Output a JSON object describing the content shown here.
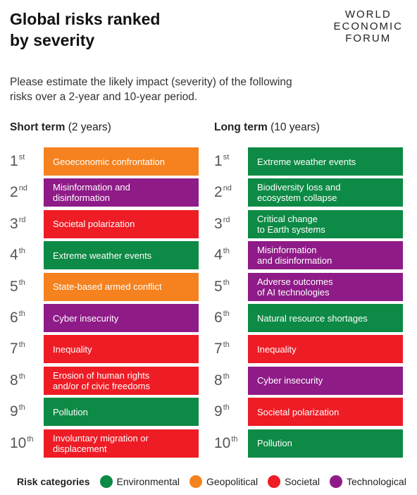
{
  "header": {
    "title": [
      "Global risks ranked",
      "by severity"
    ],
    "logo": [
      "WORLD",
      "ECONOMIC",
      "FORUM"
    ]
  },
  "description": [
    "Please estimate the likely impact (severity) of the following",
    "risks over a 2-year and 10-year period."
  ],
  "columns": [
    {
      "title": "Short term",
      "subtitle": "(2 years)",
      "rows": [
        {
          "rank": "1",
          "suffix": "st",
          "risk": [
            "Geoeconomic confrontation"
          ],
          "color": "#f5821f"
        },
        {
          "rank": "2",
          "suffix": "nd",
          "risk": [
            "Misinformation and",
            "disinformation"
          ],
          "color": "#8e1b87"
        },
        {
          "rank": "3",
          "suffix": "rd",
          "risk": [
            "Societal polarization"
          ],
          "color": "#ee1c25"
        },
        {
          "rank": "4",
          "suffix": "th",
          "risk": [
            "Extreme weather events"
          ],
          "color": "#0d8a45"
        },
        {
          "rank": "5",
          "suffix": "th",
          "risk": [
            "State-based armed conflict"
          ],
          "color": "#f5821f"
        },
        {
          "rank": "6",
          "suffix": "th",
          "risk": [
            "Cyber insecurity"
          ],
          "color": "#8e1b87"
        },
        {
          "rank": "7",
          "suffix": "th",
          "risk": [
            "Inequality"
          ],
          "color": "#ee1c25"
        },
        {
          "rank": "8",
          "suffix": "th",
          "risk": [
            "Erosion of human rights",
            "and/or of civic freedoms"
          ],
          "color": "#ee1c25"
        },
        {
          "rank": "9",
          "suffix": "th",
          "risk": [
            "Pollution"
          ],
          "color": "#0d8a45"
        },
        {
          "rank": "10",
          "suffix": "th",
          "risk": [
            "Involuntary migration or",
            "displacement"
          ],
          "color": "#ee1c25"
        }
      ]
    },
    {
      "title": "Long term",
      "subtitle": "(10 years)",
      "rows": [
        {
          "rank": "1",
          "suffix": "st",
          "risk": [
            "Extreme weather events"
          ],
          "color": "#0d8a45"
        },
        {
          "rank": "2",
          "suffix": "nd",
          "risk": [
            "Biodiversity loss and",
            "ecosystem collapse"
          ],
          "color": "#0d8a45"
        },
        {
          "rank": "3",
          "suffix": "rd",
          "risk": [
            "Critical change",
            "to Earth systems"
          ],
          "color": "#0d8a45"
        },
        {
          "rank": "4",
          "suffix": "th",
          "risk": [
            "Misinformation",
            "and disinformation"
          ],
          "color": "#8e1b87"
        },
        {
          "rank": "5",
          "suffix": "th",
          "risk": [
            "Adverse outcomes",
            "of AI technologies"
          ],
          "color": "#8e1b87"
        },
        {
          "rank": "6",
          "suffix": "th",
          "risk": [
            "Natural resource shortages"
          ],
          "color": "#0d8a45"
        },
        {
          "rank": "7",
          "suffix": "th",
          "risk": [
            "Inequality"
          ],
          "color": "#ee1c25"
        },
        {
          "rank": "8",
          "suffix": "th",
          "risk": [
            "Cyber insecurity"
          ],
          "color": "#8e1b87"
        },
        {
          "rank": "9",
          "suffix": "th",
          "risk": [
            "Societal polarization"
          ],
          "color": "#ee1c25"
        },
        {
          "rank": "10",
          "suffix": "th",
          "risk": [
            "Pollution"
          ],
          "color": "#0d8a45"
        }
      ]
    }
  ],
  "legend": {
    "title": "Risk categories",
    "items": [
      {
        "label": "Environmental",
        "color": "#0d8a45"
      },
      {
        "label": "Geopolitical",
        "color": "#f5821f"
      },
      {
        "label": "Societal",
        "color": "#ee1c25"
      },
      {
        "label": "Technological",
        "color": "#8e1b87"
      }
    ]
  }
}
